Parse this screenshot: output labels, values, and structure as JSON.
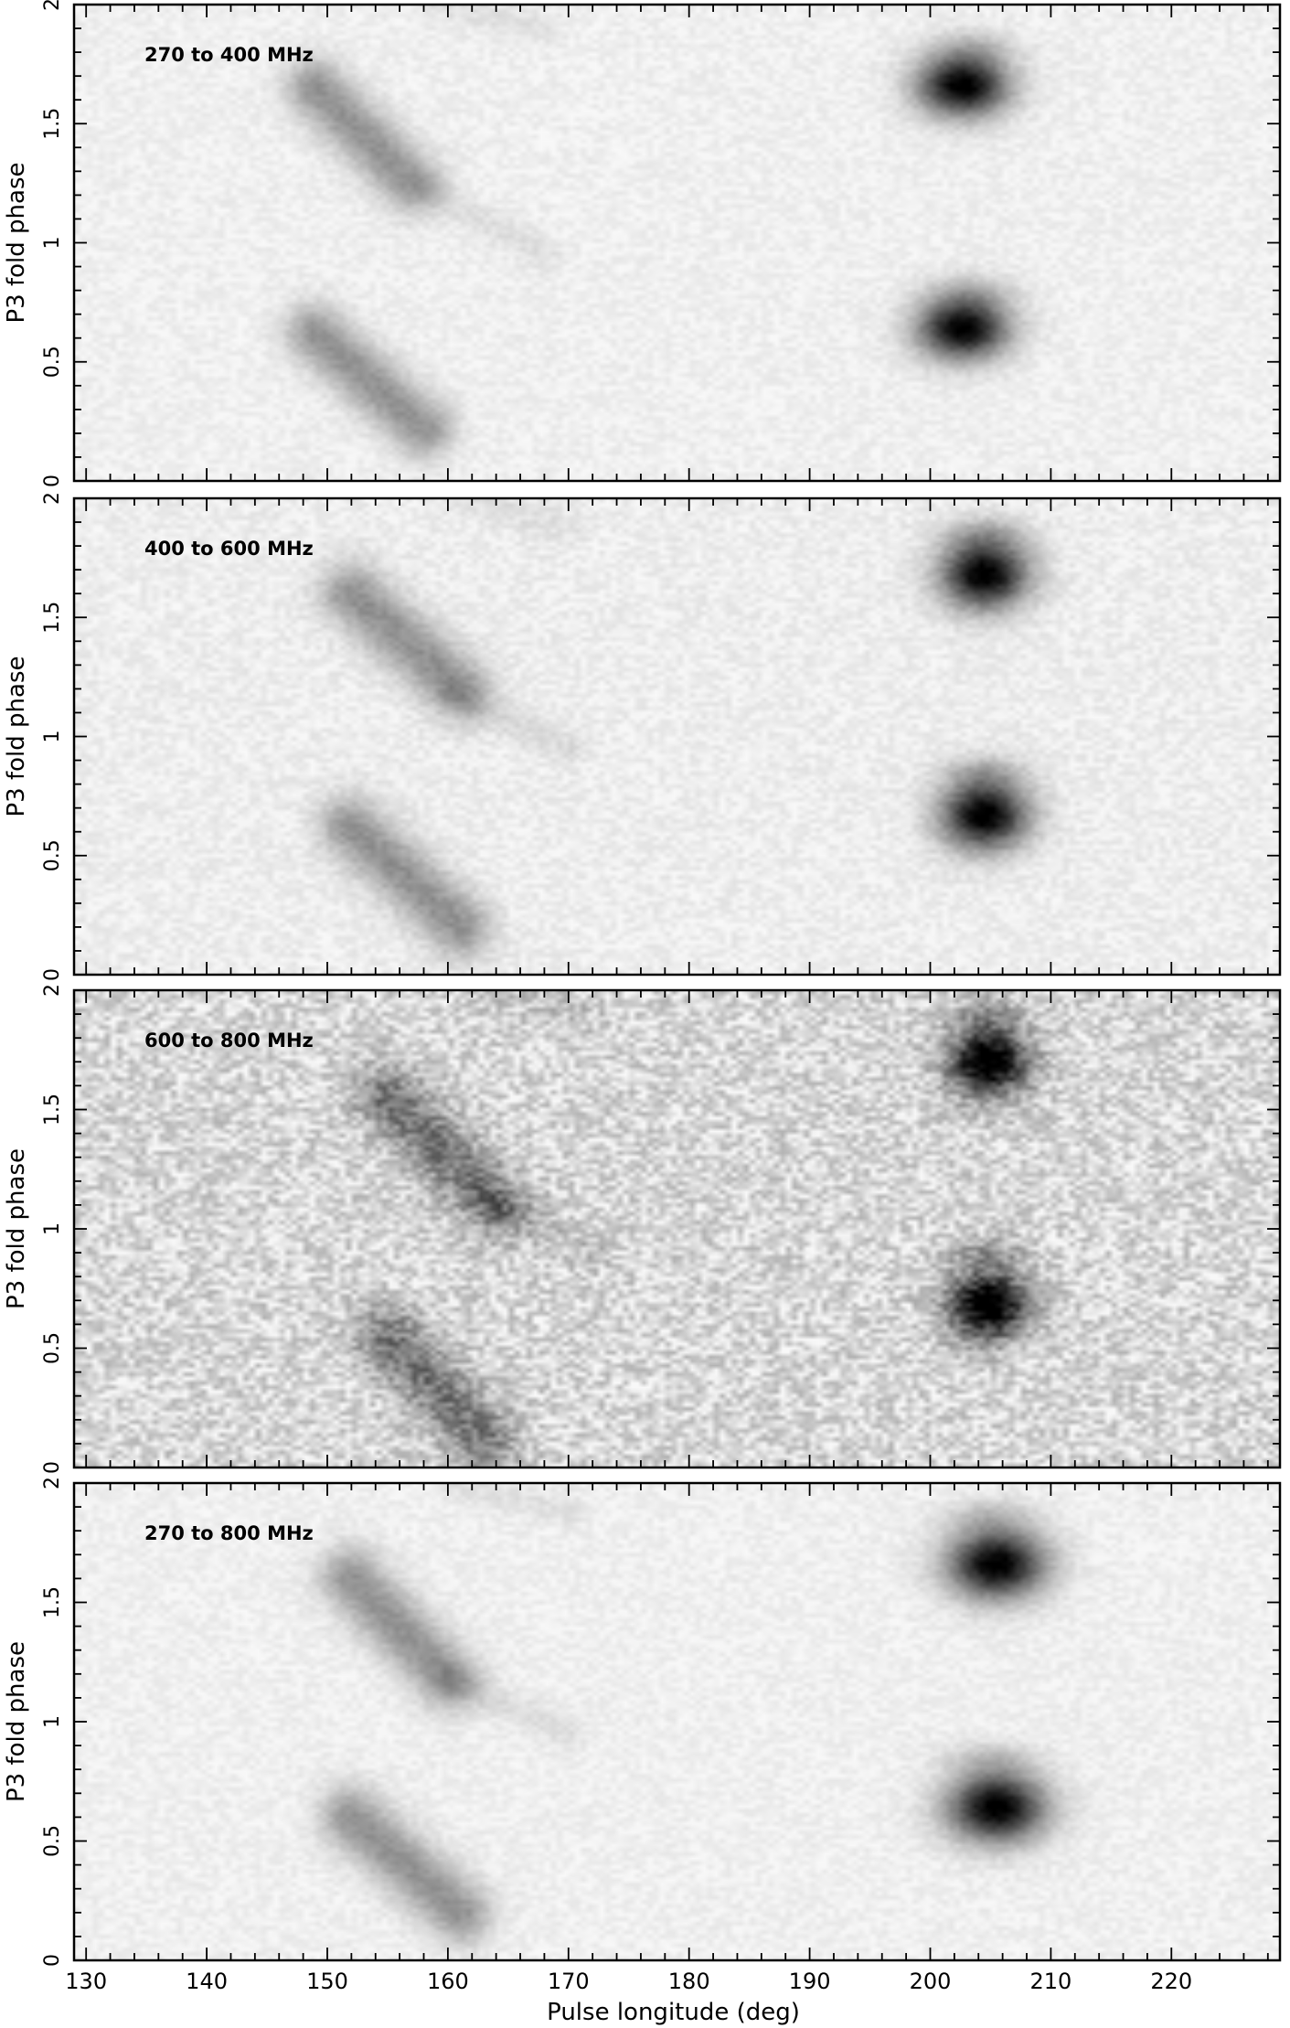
{
  "chart_data": [
    {
      "type": "heatmap",
      "label": "270 to 400 MHz",
      "ylabel": "P3 fold phase",
      "xlim": [
        129,
        229
      ],
      "ylim": [
        0,
        2
      ],
      "yticks": [
        "0",
        "0.5",
        "1",
        "1.5",
        "2"
      ],
      "noise": 0.04,
      "blobs": [
        {
          "x": 202.7,
          "y": 1.66,
          "sx": 2.6,
          "sy": 0.09,
          "amp": 1.0
        },
        {
          "x": 202.7,
          "y": 0.64,
          "sx": 2.6,
          "sy": 0.09,
          "amp": 1.0
        },
        {
          "x": 203.5,
          "y": 1.82,
          "sx": 2.5,
          "sy": 0.05,
          "amp": 0.15
        },
        {
          "x": 203.5,
          "y": 0.8,
          "sx": 2.5,
          "sy": 0.05,
          "amp": 0.15
        }
      ],
      "streaks": [
        {
          "x1": 149,
          "y1": 1.65,
          "x2": 157,
          "y2": 1.25,
          "w": 1.7,
          "amp": 0.38
        },
        {
          "x1": 149,
          "y1": 0.62,
          "x2": 158,
          "y2": 0.22,
          "w": 1.7,
          "amp": 0.38
        },
        {
          "x1": 159,
          "y1": 1.2,
          "x2": 168,
          "y2": 0.95,
          "w": 1.0,
          "amp": 0.07
        },
        {
          "x1": 159,
          "y1": 2.0,
          "x2": 168,
          "y2": 1.9,
          "w": 1.0,
          "amp": 0.06
        }
      ]
    },
    {
      "type": "heatmap",
      "label": "400 to 600 MHz",
      "ylabel": "P3 fold phase",
      "xlim": [
        129,
        229
      ],
      "ylim": [
        0,
        2
      ],
      "yticks": [
        "0",
        "0.5",
        "1",
        "1.5",
        "2"
      ],
      "noise": 0.05,
      "blobs": [
        {
          "x": 204.5,
          "y": 1.68,
          "sx": 2.5,
          "sy": 0.1,
          "amp": 1.0
        },
        {
          "x": 204.5,
          "y": 0.67,
          "sx": 2.5,
          "sy": 0.1,
          "amp": 1.0
        },
        {
          "x": 204.5,
          "y": 1.85,
          "sx": 2.4,
          "sy": 0.05,
          "amp": 0.18
        },
        {
          "x": 204.5,
          "y": 0.85,
          "sx": 2.4,
          "sy": 0.05,
          "amp": 0.18
        }
      ],
      "streaks": [
        {
          "x1": 152,
          "y1": 1.6,
          "x2": 161,
          "y2": 1.2,
          "w": 1.8,
          "amp": 0.38
        },
        {
          "x1": 152,
          "y1": 0.62,
          "x2": 161,
          "y2": 0.2,
          "w": 1.8,
          "amp": 0.38
        },
        {
          "x1": 160,
          "y1": 1.18,
          "x2": 170,
          "y2": 0.95,
          "w": 1.0,
          "amp": 0.08
        },
        {
          "x1": 161,
          "y1": 2.0,
          "x2": 170,
          "y2": 1.88,
          "w": 1.0,
          "amp": 0.06
        }
      ]
    },
    {
      "type": "heatmap",
      "label": "600 to 800 MHz",
      "ylabel": "P3 fold phase",
      "xlim": [
        129,
        229
      ],
      "ylim": [
        0,
        2
      ],
      "yticks": [
        "0",
        "0.5",
        "1",
        "1.5",
        "2"
      ],
      "noise": 0.16,
      "blobs": [
        {
          "x": 204.8,
          "y": 1.7,
          "sx": 2.3,
          "sy": 0.1,
          "amp": 1.0
        },
        {
          "x": 204.8,
          "y": 0.68,
          "sx": 2.3,
          "sy": 0.1,
          "amp": 1.0
        },
        {
          "x": 204.8,
          "y": 1.9,
          "sx": 2.2,
          "sy": 0.05,
          "amp": 0.2
        },
        {
          "x": 204.8,
          "y": 0.9,
          "sx": 2.2,
          "sy": 0.05,
          "amp": 0.2
        }
      ],
      "streaks": [
        {
          "x1": 155,
          "y1": 1.55,
          "x2": 164,
          "y2": 1.1,
          "w": 1.9,
          "amp": 0.4
        },
        {
          "x1": 155,
          "y1": 0.55,
          "x2": 163,
          "y2": 0.12,
          "w": 1.9,
          "amp": 0.4
        },
        {
          "x1": 163,
          "y1": 1.12,
          "x2": 172,
          "y2": 0.9,
          "w": 1.0,
          "amp": 0.1
        },
        {
          "x1": 163,
          "y1": 2.0,
          "x2": 172,
          "y2": 1.88,
          "w": 1.0,
          "amp": 0.08
        }
      ]
    },
    {
      "type": "heatmap",
      "label": "270 to 800 MHz",
      "ylabel": "P3 fold phase",
      "xlabel": "Pulse longitude (deg)",
      "xlim": [
        129,
        229
      ],
      "ylim": [
        0,
        2
      ],
      "xticks": [
        "130",
        "140",
        "150",
        "160",
        "170",
        "180",
        "190",
        "200",
        "210",
        "220"
      ],
      "yticks": [
        "0",
        "0.5",
        "1",
        "1.5",
        "2"
      ],
      "noise": 0.04,
      "blobs": [
        {
          "x": 205.5,
          "y": 1.66,
          "sx": 2.8,
          "sy": 0.1,
          "amp": 1.0
        },
        {
          "x": 205.5,
          "y": 0.64,
          "sx": 2.8,
          "sy": 0.1,
          "amp": 1.0
        },
        {
          "x": 205,
          "y": 1.86,
          "sx": 2.6,
          "sy": 0.05,
          "amp": 0.15
        },
        {
          "x": 205,
          "y": 0.84,
          "sx": 2.6,
          "sy": 0.05,
          "amp": 0.15
        }
      ],
      "streaks": [
        {
          "x1": 152,
          "y1": 1.6,
          "x2": 160,
          "y2": 1.18,
          "w": 1.8,
          "amp": 0.38
        },
        {
          "x1": 152,
          "y1": 0.6,
          "x2": 161,
          "y2": 0.2,
          "w": 1.8,
          "amp": 0.38
        },
        {
          "x1": 160,
          "y1": 1.18,
          "x2": 170,
          "y2": 0.95,
          "w": 1.0,
          "amp": 0.08
        },
        {
          "x1": 160,
          "y1": 2.0,
          "x2": 170,
          "y2": 1.88,
          "w": 1.0,
          "amp": 0.06
        }
      ]
    }
  ]
}
